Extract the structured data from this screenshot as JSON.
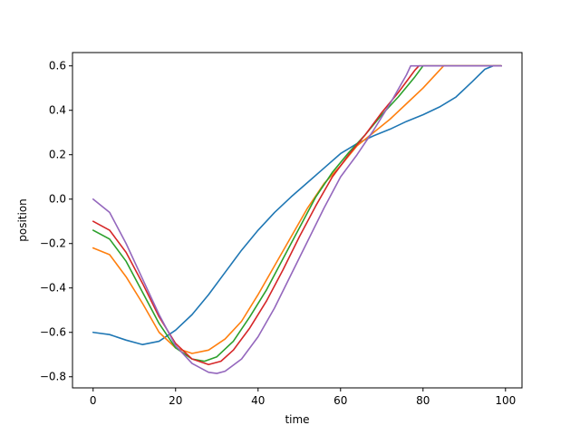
{
  "chart_data": {
    "type": "line",
    "title": "",
    "xlabel": "time",
    "ylabel": "position",
    "xlim": [
      -5,
      104
    ],
    "ylim": [
      -0.85,
      0.66
    ],
    "xticks": [
      0,
      20,
      40,
      60,
      80,
      100
    ],
    "xtick_labels": [
      "0",
      "20",
      "40",
      "60",
      "80",
      "100"
    ],
    "yticks": [
      -0.8,
      -0.6,
      -0.4,
      -0.2,
      0.0,
      0.2,
      0.4,
      0.6
    ],
    "ytick_labels": [
      "−0.8",
      "−0.6",
      "−0.4",
      "−0.2",
      "0.0",
      "0.2",
      "0.4",
      "0.6"
    ],
    "grid": false,
    "series": [
      {
        "color": "#1f77b4",
        "x": [
          0,
          4,
          8,
          12,
          16,
          20,
          24,
          28,
          32,
          36,
          40,
          44,
          48,
          52,
          56,
          60,
          64,
          68,
          72,
          76,
          80,
          84,
          88,
          92,
          95,
          97,
          99
        ],
        "y": [
          -0.6,
          -0.61,
          -0.635,
          -0.655,
          -0.64,
          -0.59,
          -0.52,
          -0.43,
          -0.33,
          -0.23,
          -0.14,
          -0.06,
          0.01,
          0.075,
          0.14,
          0.205,
          0.25,
          0.285,
          0.315,
          0.35,
          0.38,
          0.415,
          0.46,
          0.53,
          0.585,
          0.6,
          0.6
        ]
      },
      {
        "color": "#ff7f0e",
        "x": [
          0,
          4,
          8,
          12,
          16,
          20,
          24,
          28,
          32,
          36,
          40,
          44,
          48,
          52,
          56,
          60,
          64,
          68,
          72,
          76,
          80,
          84,
          85,
          88,
          92,
          96,
          99
        ],
        "y": [
          -0.22,
          -0.25,
          -0.35,
          -0.47,
          -0.6,
          -0.67,
          -0.695,
          -0.68,
          -0.63,
          -0.55,
          -0.43,
          -0.3,
          -0.17,
          -0.04,
          0.07,
          0.15,
          0.24,
          0.3,
          0.36,
          0.43,
          0.5,
          0.58,
          0.6,
          0.6,
          0.6,
          0.6,
          0.6
        ]
      },
      {
        "color": "#2ca02c",
        "x": [
          0,
          4,
          8,
          12,
          16,
          20,
          24,
          27,
          30,
          34,
          38,
          42,
          46,
          50,
          54,
          58,
          62,
          66,
          70,
          74,
          78,
          80,
          84,
          88,
          92,
          96,
          99
        ],
        "y": [
          -0.14,
          -0.18,
          -0.28,
          -0.42,
          -0.56,
          -0.67,
          -0.72,
          -0.73,
          -0.71,
          -0.64,
          -0.53,
          -0.41,
          -0.27,
          -0.13,
          0.01,
          0.12,
          0.21,
          0.29,
          0.38,
          0.46,
          0.55,
          0.6,
          0.6,
          0.6,
          0.6,
          0.6,
          0.6
        ]
      },
      {
        "color": "#d62728",
        "x": [
          0,
          4,
          8,
          12,
          16,
          20,
          24,
          28,
          31,
          34,
          38,
          42,
          46,
          50,
          54,
          58,
          62,
          66,
          70,
          74,
          78,
          79,
          84,
          88,
          92,
          96,
          99
        ],
        "y": [
          -0.1,
          -0.14,
          -0.24,
          -0.38,
          -0.53,
          -0.65,
          -0.72,
          -0.745,
          -0.73,
          -0.68,
          -0.58,
          -0.46,
          -0.32,
          -0.17,
          -0.03,
          0.1,
          0.2,
          0.29,
          0.39,
          0.48,
          0.58,
          0.6,
          0.6,
          0.6,
          0.6,
          0.6,
          0.6
        ]
      },
      {
        "color": "#9467bd",
        "x": [
          0,
          4,
          8,
          12,
          16,
          20,
          24,
          28,
          30,
          32,
          36,
          40,
          44,
          48,
          52,
          56,
          60,
          64,
          68,
          72,
          76,
          77,
          80,
          84,
          88,
          92,
          99
        ],
        "y": [
          0.0,
          -0.06,
          -0.2,
          -0.36,
          -0.52,
          -0.66,
          -0.74,
          -0.78,
          -0.785,
          -0.775,
          -0.72,
          -0.62,
          -0.49,
          -0.34,
          -0.19,
          -0.04,
          0.1,
          0.2,
          0.31,
          0.43,
          0.56,
          0.6,
          0.6,
          0.6,
          0.6,
          0.6,
          0.6
        ]
      }
    ]
  }
}
